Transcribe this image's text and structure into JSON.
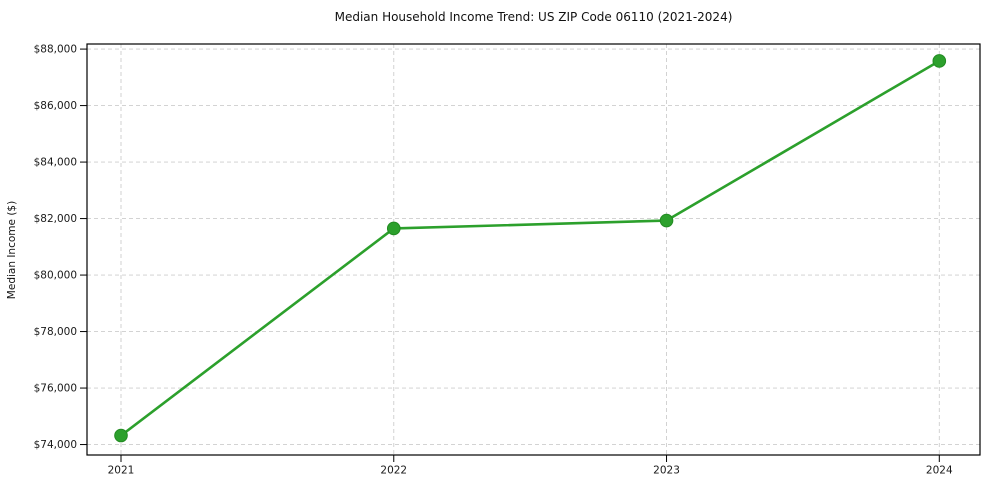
{
  "chart_data": {
    "type": "line",
    "title": "Median Household Income Trend: US ZIP Code 06110 (2021-2024)",
    "xlabel": "",
    "ylabel": "Median Income ($)",
    "categories": [
      "2021",
      "2022",
      "2023",
      "2024"
    ],
    "values": [
      74320,
      81650,
      81930,
      87580
    ],
    "ylim": [
      73630,
      88180
    ],
    "yticks": [
      74000,
      76000,
      78000,
      80000,
      82000,
      84000,
      86000,
      88000
    ],
    "ytick_labels": [
      "$74,000",
      "$76,000",
      "$78,000",
      "$80,000",
      "$82,000",
      "$84,000",
      "$86,000",
      "$88,000"
    ],
    "grid": "dashed-both-axes",
    "legend": "none",
    "colors": {
      "line": "#2ca02c",
      "marker_fill": "#2ca02c",
      "marker_edge": "#228B22",
      "grid": "#cdcdcd",
      "spine": "#000000",
      "background": "#ffffff"
    }
  }
}
